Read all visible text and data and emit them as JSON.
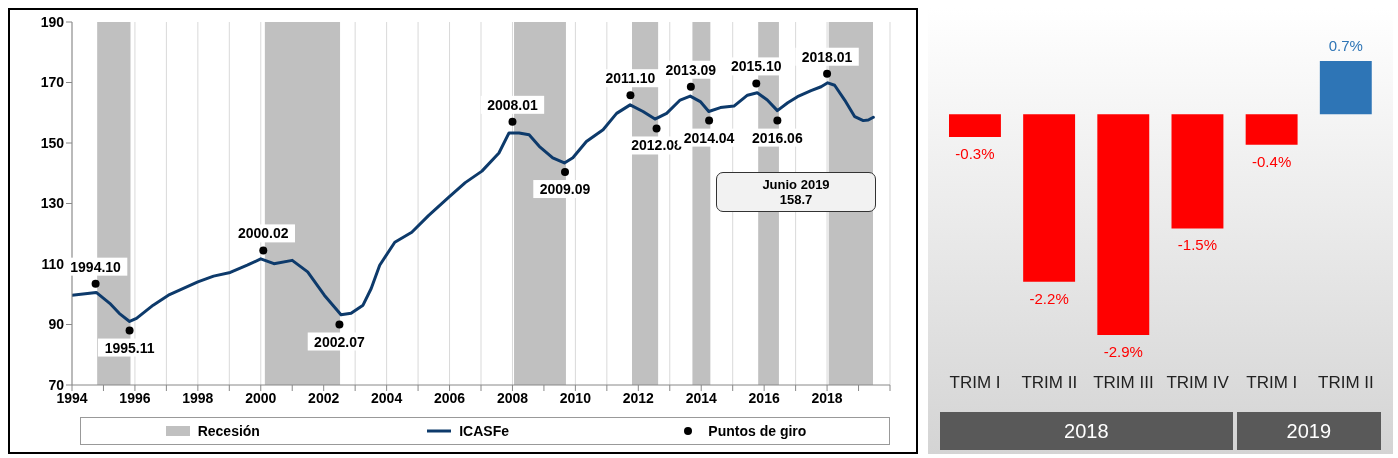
{
  "chart_data": [
    {
      "type": "line",
      "xlim": [
        1994,
        2020
      ],
      "ylim": [
        70,
        190
      ],
      "xticks": [
        1994,
        {
          "value": 1995,
          "label": null
        },
        1996,
        {
          "value": 1997,
          "label": null
        },
        1998,
        {
          "value": 1999,
          "label": null
        },
        2000,
        {
          "value": 2001,
          "label": null
        },
        2002,
        {
          "value": 2003,
          "label": null
        },
        2004,
        {
          "value": 2005,
          "label": null
        },
        2006,
        {
          "value": 2007,
          "label": null
        },
        2008,
        {
          "value": 2009,
          "label": null
        },
        2010,
        {
          "value": 2011,
          "label": null
        },
        2012,
        {
          "value": 2013,
          "label": null
        },
        2014,
        {
          "value": 2015,
          "label": null
        },
        2016,
        {
          "value": 2017,
          "label": null
        },
        2018,
        {
          "value": 2019,
          "label": null
        },
        {
          "value": 2020,
          "label": null
        }
      ],
      "yticks": [
        70,
        90,
        110,
        130,
        150,
        170,
        190
      ],
      "grid": "x",
      "legend": "bottom",
      "bands": [
        {
          "axis": "x",
          "from": 1994.8,
          "to": 1995.86,
          "label": "Recesión",
          "color": "#c0c0c0"
        },
        {
          "axis": "x",
          "from": 2000.13,
          "to": 2002.52,
          "color": "#c0c0c0"
        },
        {
          "axis": "x",
          "from": 2008.05,
          "to": 2009.7,
          "color": "#c0c0c0"
        },
        {
          "axis": "x",
          "from": 2011.8,
          "to": 2012.63,
          "color": "#c0c0c0"
        },
        {
          "axis": "x",
          "from": 2013.72,
          "to": 2014.29,
          "color": "#c0c0c0"
        },
        {
          "axis": "x",
          "from": 2015.81,
          "to": 2016.47,
          "color": "#c0c0c0"
        },
        {
          "axis": "x",
          "from": 2018.05,
          "to": 2019.46,
          "color": "#c0c0c0"
        }
      ],
      "series": [
        {
          "name": "ICASFe",
          "type": "line",
          "color": "#0d3a6b",
          "marker": "none",
          "x": [
            1994.0,
            1994.77,
            1995.2,
            1995.5,
            1995.83,
            1996.05,
            1996.58,
            1997.1,
            1998.0,
            1998.5,
            1999.03,
            1999.57,
            2000.0,
            2000.42,
            2001.0,
            2001.49,
            2002.02,
            2002.55,
            2002.87,
            2003.25,
            2003.51,
            2003.78,
            2004.26,
            2004.8,
            2005.33,
            2005.97,
            2006.5,
            2007.03,
            2007.57,
            2007.89,
            2008.21,
            2008.53,
            2008.85,
            2009.28,
            2009.65,
            2009.92,
            2010.35,
            2010.88,
            2011.31,
            2011.74,
            2012.15,
            2012.53,
            2012.9,
            2013.33,
            2013.65,
            2013.97,
            2014.24,
            2014.61,
            2015.04,
            2015.47,
            2015.78,
            2016.1,
            2016.42,
            2016.75,
            2017.06,
            2017.49,
            2017.81,
            2018.02,
            2018.24,
            2018.56,
            2018.88,
            2019.15,
            2019.31,
            2019.47
          ],
          "values": [
            99.7,
            100.6,
            97,
            93.7,
            91,
            92,
            96.4,
            99.9,
            104.1,
            106,
            107.2,
            109.6,
            111.7,
            110.1,
            111.2,
            107.4,
            99.7,
            93.2,
            93.7,
            96.4,
            101.9,
            109.6,
            117.2,
            120.5,
            126,
            132,
            136.9,
            140.7,
            146.7,
            153.3,
            153.3,
            152.7,
            148.9,
            145.1,
            143.4,
            145.1,
            150.5,
            154.4,
            159.8,
            162.6,
            160.4,
            157.9,
            159.8,
            164.2,
            165.5,
            163.7,
            160.4,
            161.7,
            162.2,
            165.8,
            166.6,
            164.2,
            160.7,
            163.3,
            165.3,
            167.3,
            168.6,
            169.9,
            169.1,
            164.2,
            158.7,
            157.4,
            157.6,
            158.5
          ]
        },
        {
          "name": "Puntos de giro",
          "type": "scatter",
          "color": "#000000",
          "marker": "circle",
          "x": [
            1994.75,
            1995.83,
            2000.08,
            2002.5,
            2008.0,
            2009.67,
            2011.75,
            2012.58,
            2013.67,
            2014.25,
            2015.75,
            2016.42,
            2018.0
          ],
          "values": [
            103.5,
            88,
            114.5,
            90,
            157,
            140.4,
            165.8,
            154.8,
            168.6,
            157.4,
            169.7,
            157.4,
            172.9
          ]
        }
      ],
      "annotations": [
        {
          "text": "1994.10",
          "x": 1994.75,
          "y": 103.5
        },
        {
          "text": "1995.11",
          "x": 1995.83,
          "y": 88
        },
        {
          "text": "2000.02",
          "x": 2000.08,
          "y": 114.5
        },
        {
          "text": "2002.07",
          "x": 2002.5,
          "y": 90
        },
        {
          "text": "2008.01",
          "x": 2008.0,
          "y": 157
        },
        {
          "text": "2009.09",
          "x": 2009.67,
          "y": 140.4
        },
        {
          "text": "2011.10",
          "x": 2011.75,
          "y": 165.8
        },
        {
          "text": "2012.08",
          "x": 2012.58,
          "y": 154.8
        },
        {
          "text": "2013.09",
          "x": 2013.67,
          "y": 168.6
        },
        {
          "text": "2014.04",
          "x": 2014.25,
          "y": 157.4
        },
        {
          "text": "2015.10",
          "x": 2015.75,
          "y": 169.7
        },
        {
          "text": "2016.06",
          "x": 2016.42,
          "y": 157.4
        },
        {
          "text": "2018.01",
          "x": 2018.0,
          "y": 172.9
        },
        "Junio 2019\n158.7"
      ]
    },
    {
      "type": "bar",
      "categories": [
        "TRIM I",
        "TRIM II",
        "TRIM III",
        "TRIM IV",
        "TRIM I",
        "TRIM II"
      ],
      "values": [
        -0.3,
        -2.2,
        -2.9,
        -1.5,
        -0.4,
        0.7
      ],
      "colors": [
        "#ff0000",
        "#ff0000",
        "#ff0000",
        "#ff0000",
        "#ff0000",
        "#2e75b6"
      ],
      "value_labels": [
        "-0.3%",
        "-2.2%",
        "-2.9%",
        "-1.5%",
        "-0.4%",
        "0.7%"
      ],
      "annotations": [
        "2018",
        "2019"
      ]
    }
  ]
}
